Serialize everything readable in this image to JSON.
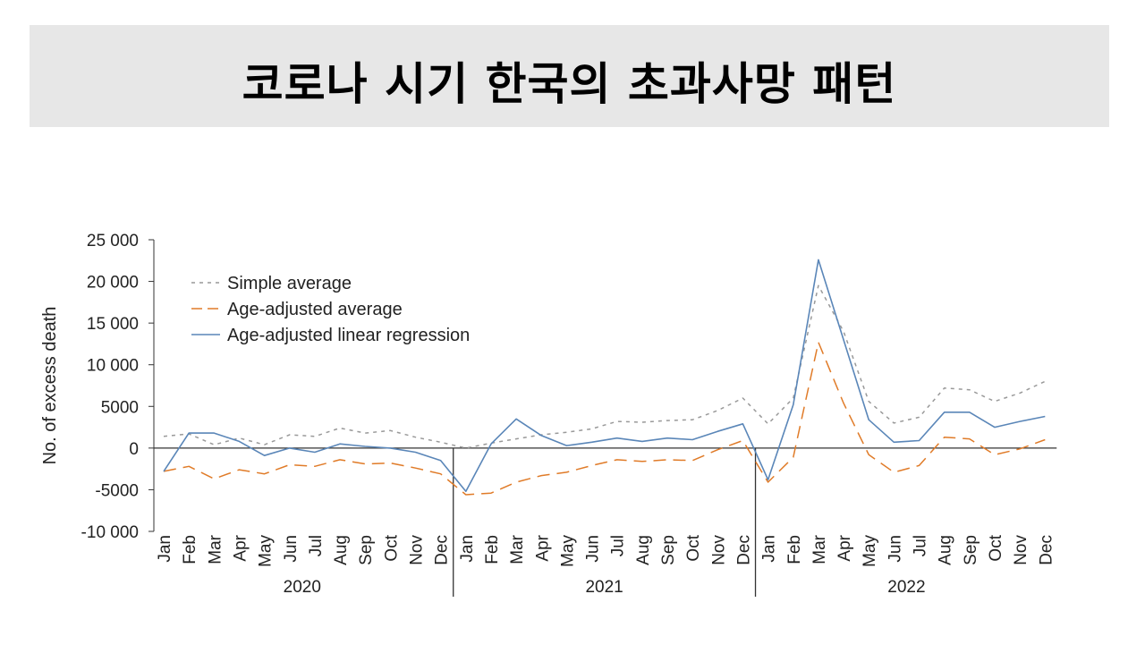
{
  "page": {
    "title": "코로나 시기 한국의 초과사망 패턴"
  },
  "chart_data": {
    "type": "line",
    "title": "",
    "ylabel": "No. of excess death",
    "xlabel": "",
    "ylim": [
      -10000,
      25000
    ],
    "yticks": [
      {
        "value": 25000,
        "label": "25 000"
      },
      {
        "value": 20000,
        "label": "20 000"
      },
      {
        "value": 15000,
        "label": "15 000"
      },
      {
        "value": 10000,
        "label": "10 000"
      },
      {
        "value": 5000,
        "label": "5000"
      },
      {
        "value": 0,
        "label": "0"
      },
      {
        "value": -5000,
        "label": "-5000"
      },
      {
        "value": -10000,
        "label": "-10 000"
      }
    ],
    "months": [
      "Jan",
      "Feb",
      "Mar",
      "Apr",
      "May",
      "Jun",
      "Jul",
      "Aug",
      "Sep",
      "Oct",
      "Nov",
      "Dec"
    ],
    "years": [
      "2020",
      "2021",
      "2022"
    ],
    "legend_position": "top-left",
    "grid": false,
    "series": [
      {
        "name": "Simple average",
        "color": "#999999",
        "style": "dotted",
        "values": [
          1400,
          1700,
          400,
          1200,
          400,
          1600,
          1400,
          2400,
          1800,
          2100,
          1300,
          700,
          0,
          600,
          1100,
          1600,
          1900,
          2300,
          3200,
          3100,
          3300,
          3400,
          4500,
          6000,
          2900,
          6000,
          19500,
          14000,
          5600,
          3000,
          3700,
          7200,
          7000,
          5600,
          6600,
          8000
        ]
      },
      {
        "name": "Age-adjusted average",
        "color": "#e07b28",
        "style": "dashed",
        "values": [
          -2800,
          -2200,
          -3700,
          -2600,
          -3100,
          -2000,
          -2200,
          -1400,
          -1900,
          -1800,
          -2400,
          -3100,
          -5600,
          -5400,
          -4100,
          -3300,
          -2900,
          -2100,
          -1400,
          -1600,
          -1400,
          -1500,
          -200,
          900,
          -4100,
          -1100,
          12700,
          5400,
          -800,
          -2900,
          -2100,
          1300,
          1100,
          -800,
          -100,
          1000
        ]
      },
      {
        "name": "Age-adjusted linear regression",
        "color": "#5a86b8",
        "style": "solid",
        "values": [
          -2800,
          1800,
          1800,
          800,
          -900,
          0,
          -500,
          500,
          200,
          0,
          -500,
          -1500,
          -5200,
          500,
          3500,
          1500,
          300,
          700,
          1200,
          800,
          1200,
          1000,
          2000,
          2900,
          -3800,
          5200,
          22600,
          13000,
          3400,
          700,
          900,
          4300,
          4300,
          2500,
          3200,
          3800
        ]
      }
    ]
  }
}
